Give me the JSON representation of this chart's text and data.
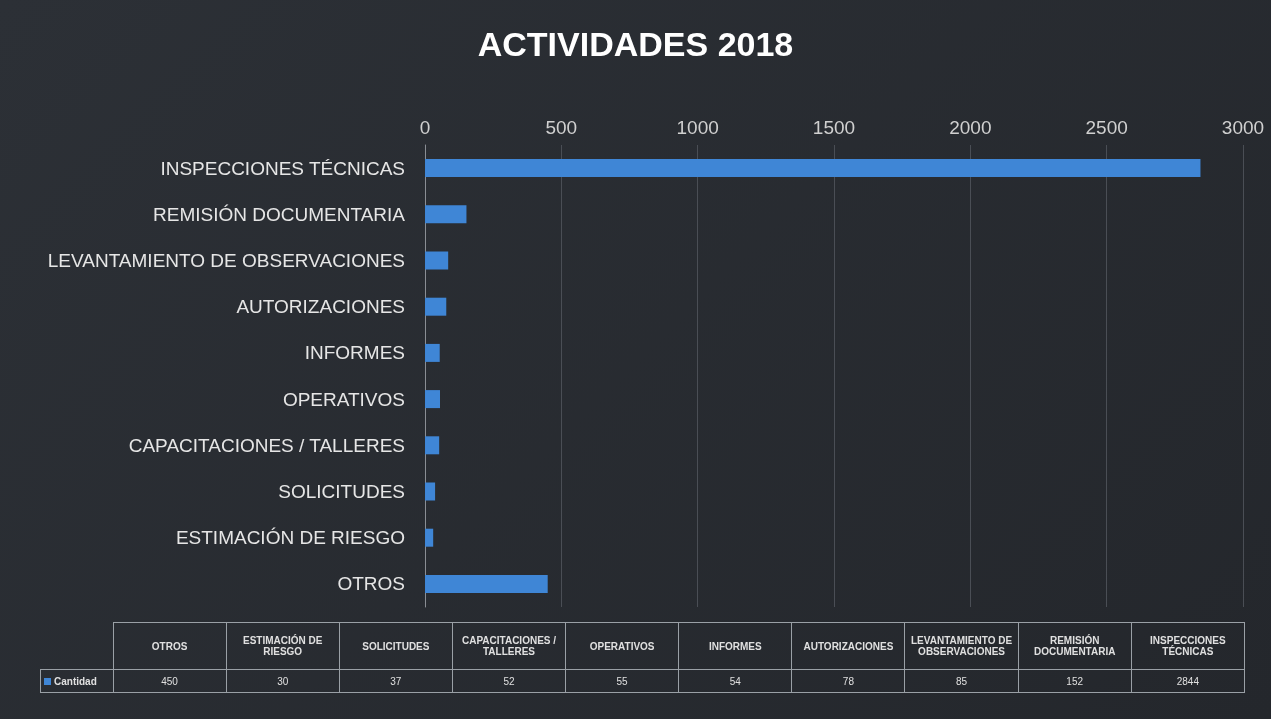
{
  "chart_data": [
    {
      "type": "bar",
      "title": "ACTIVIDADES 2018",
      "orientation": "horizontal",
      "categories": [
        "INSPECCIONES TÉCNICAS",
        "REMISIÓN DOCUMENTARIA",
        "LEVANTAMIENTO DE OBSERVACIONES",
        "AUTORIZACIONES",
        "INFORMES",
        "OPERATIVOS",
        "CAPACITACIONES / TALLERES",
        "SOLICITUDES",
        "ESTIMACIÓN DE RIESGO",
        "OTROS"
      ],
      "series": [
        {
          "color": "#3f86d6",
          "values": [
            2844,
            152,
            85,
            78,
            54,
            55,
            52,
            37,
            30,
            450
          ]
        }
      ],
      "xlim": [
        0,
        3000
      ],
      "xticks": [
        0,
        500,
        1000,
        1500,
        2000,
        2500,
        3000
      ],
      "grid": "x"
    },
    {
      "type": "other",
      "categories": [
        "OTROS",
        "ESTIMACIÓN DE RIESGO",
        "SOLICITUDES",
        "CAPACITACIONES / TALLERES",
        "OPERATIVOS",
        "INFORMES",
        "AUTORIZACIONES",
        "LEVANTAMIENTO DE OBSERVACIONES",
        "REMISIÓN DOCUMENTARIA",
        "INSPECCIONES TÉCNICAS"
      ],
      "series": [
        {
          "name": "Cantidad",
          "color": "#3f86d6",
          "values": [
            450,
            30,
            37,
            52,
            55,
            54,
            78,
            85,
            152,
            2844
          ]
        }
      ],
      "data_labels": true,
      "legend": "left"
    }
  ]
}
